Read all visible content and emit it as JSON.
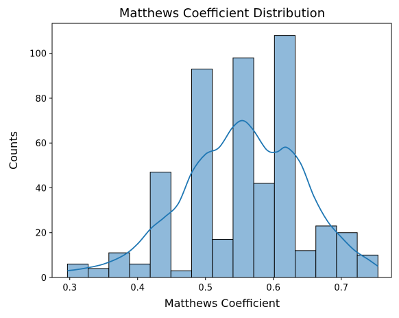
{
  "chart_data": {
    "type": "bar",
    "title": "Matthews Coefficient Distribution",
    "xlabel": "Matthews Coefficient",
    "ylabel": "Counts",
    "bin_start": 0.2966,
    "bin_width": 0.0305,
    "counts": [
      6,
      4,
      11,
      6,
      47,
      3,
      93,
      17,
      98,
      42,
      108,
      12,
      23,
      20,
      10
    ],
    "xlim": [
      0.274,
      0.774
    ],
    "ylim": [
      0,
      113.4
    ],
    "xticks": [
      0.3,
      0.4,
      0.5,
      0.6,
      0.7
    ],
    "xtick_labels": [
      "0.3",
      "0.4",
      "0.5",
      "0.6",
      "0.7"
    ],
    "yticks": [
      0,
      20,
      40,
      60,
      80,
      100
    ],
    "ytick_labels": [
      "0",
      "20",
      "40",
      "60",
      "80",
      "100"
    ],
    "kde": {
      "x": [
        0.2966,
        0.32,
        0.35,
        0.38,
        0.4,
        0.42,
        0.44,
        0.46,
        0.48,
        0.5,
        0.52,
        0.54,
        0.555,
        0.57,
        0.59,
        0.605,
        0.62,
        0.64,
        0.66,
        0.68,
        0.7,
        0.72,
        0.74,
        0.7541
      ],
      "y": [
        3,
        4,
        6,
        10,
        15,
        22,
        27,
        33,
        47,
        55,
        58,
        67,
        70,
        66,
        57,
        56,
        58,
        51,
        36,
        25,
        18,
        12,
        8,
        5
      ]
    },
    "bar_fill": "#8fb9da",
    "bar_edge": "#000000",
    "line_color": "#1f77b4",
    "grid": false
  }
}
